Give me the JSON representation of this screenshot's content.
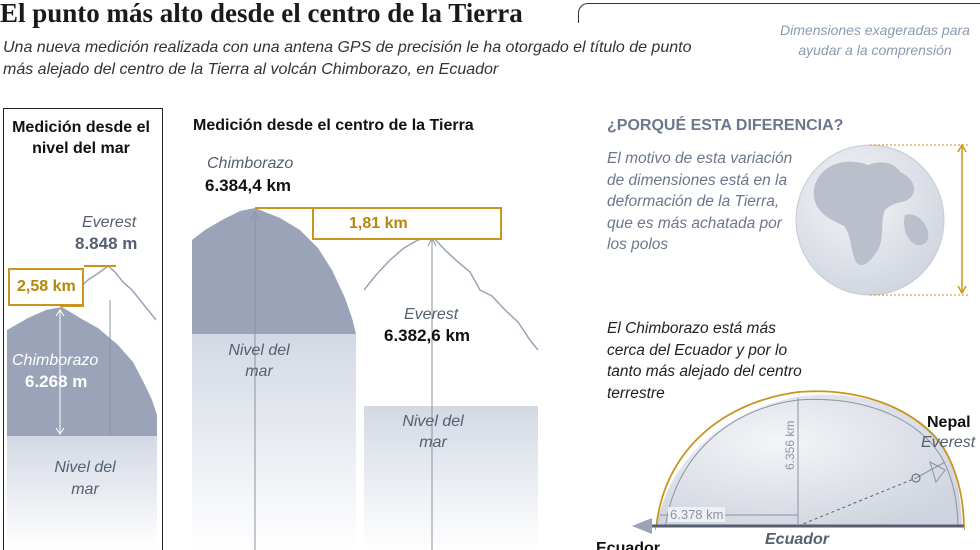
{
  "title": "El punto más alto desde el centro de la Tierra",
  "subtitle": "Una nueva medición realizada con una antena GPS de precisión le ha otorgado el título de punto más alejado del centro de la Tierra al volcán Chimborazo, en Ecuador",
  "note": "Dimensiones exageradas para ayudar a la comprensión",
  "sea_level_panel": {
    "title": "Medición desde el nivel del mar",
    "everest_name": "Everest",
    "everest_height": "8.848 m",
    "difference": "2,58 km",
    "chimborazo_name": "Chimborazo",
    "chimborazo_height": "6.268 m",
    "sea_level": "Nivel del mar"
  },
  "center_panel": {
    "title": "Medición desde el centro de la Tierra",
    "chimborazo_name": "Chimborazo",
    "chimborazo_distance": "6.384,4 km",
    "difference": "1,81 km",
    "everest_name": "Everest",
    "everest_distance": "6.382,6 km",
    "sea_level_left": "Nivel del mar",
    "sea_level_right": "Nivel del mar"
  },
  "why_panel": {
    "heading": "¿PORQUÉ ESTA DIFERENCIA?",
    "explanation": "El motivo de esta variación de dimensiones está en la deformación de la Tierra, que es más achatada por los polos",
    "closer_text": "El Chimborazo está más cerca del Ecuador y por lo tanto más alejado del centro terrestre",
    "polar_radius": "6.356 km",
    "equatorial_radius": "6.378 km",
    "equator_label": "Ecuador",
    "ecuador_country": "Ecuador",
    "nepal_label": "Nepal",
    "everest_label": "Everest"
  },
  "colors": {
    "mountain": "#9aa3b8",
    "sea_fade": "#d6dce6",
    "accent_gold": "#c8961e",
    "text_slate": "#555f70",
    "outline": "#8a93a6"
  }
}
